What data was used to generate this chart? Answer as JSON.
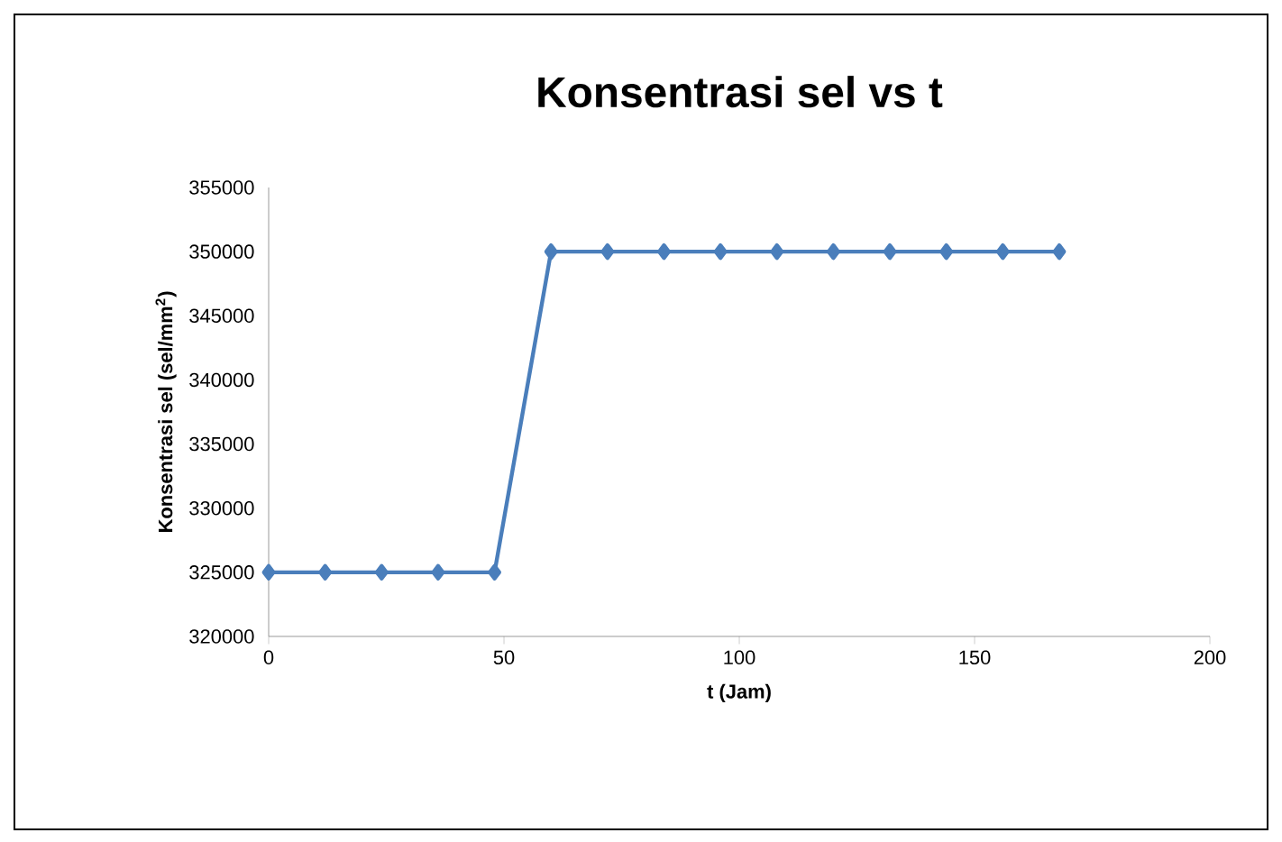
{
  "chart_data": {
    "type": "line",
    "title": "Konsentrasi sel vs t",
    "xlabel": "t (Jam)",
    "ylabel": "Konsentrasi sel (sel/mm$^{2}$)",
    "x": [
      0,
      12,
      24,
      36,
      48,
      60,
      72,
      84,
      96,
      108,
      120,
      132,
      144,
      156,
      168
    ],
    "series": [
      {
        "color": "#4a7ebb",
        "values": [
          325000,
          325000,
          325000,
          325000,
          325000,
          350000,
          350000,
          350000,
          350000,
          350000,
          350000,
          350000,
          350000,
          350000,
          350000
        ]
      }
    ],
    "xlim": [
      0,
      200
    ],
    "xticks": [
      0,
      50,
      100,
      150,
      200
    ],
    "ylim": [
      320000,
      355000
    ],
    "yticks": [
      320000,
      325000,
      330000,
      335000,
      340000,
      345000,
      350000,
      355000
    ],
    "marker": "diamond",
    "line_style": "solid",
    "grid": false
  }
}
